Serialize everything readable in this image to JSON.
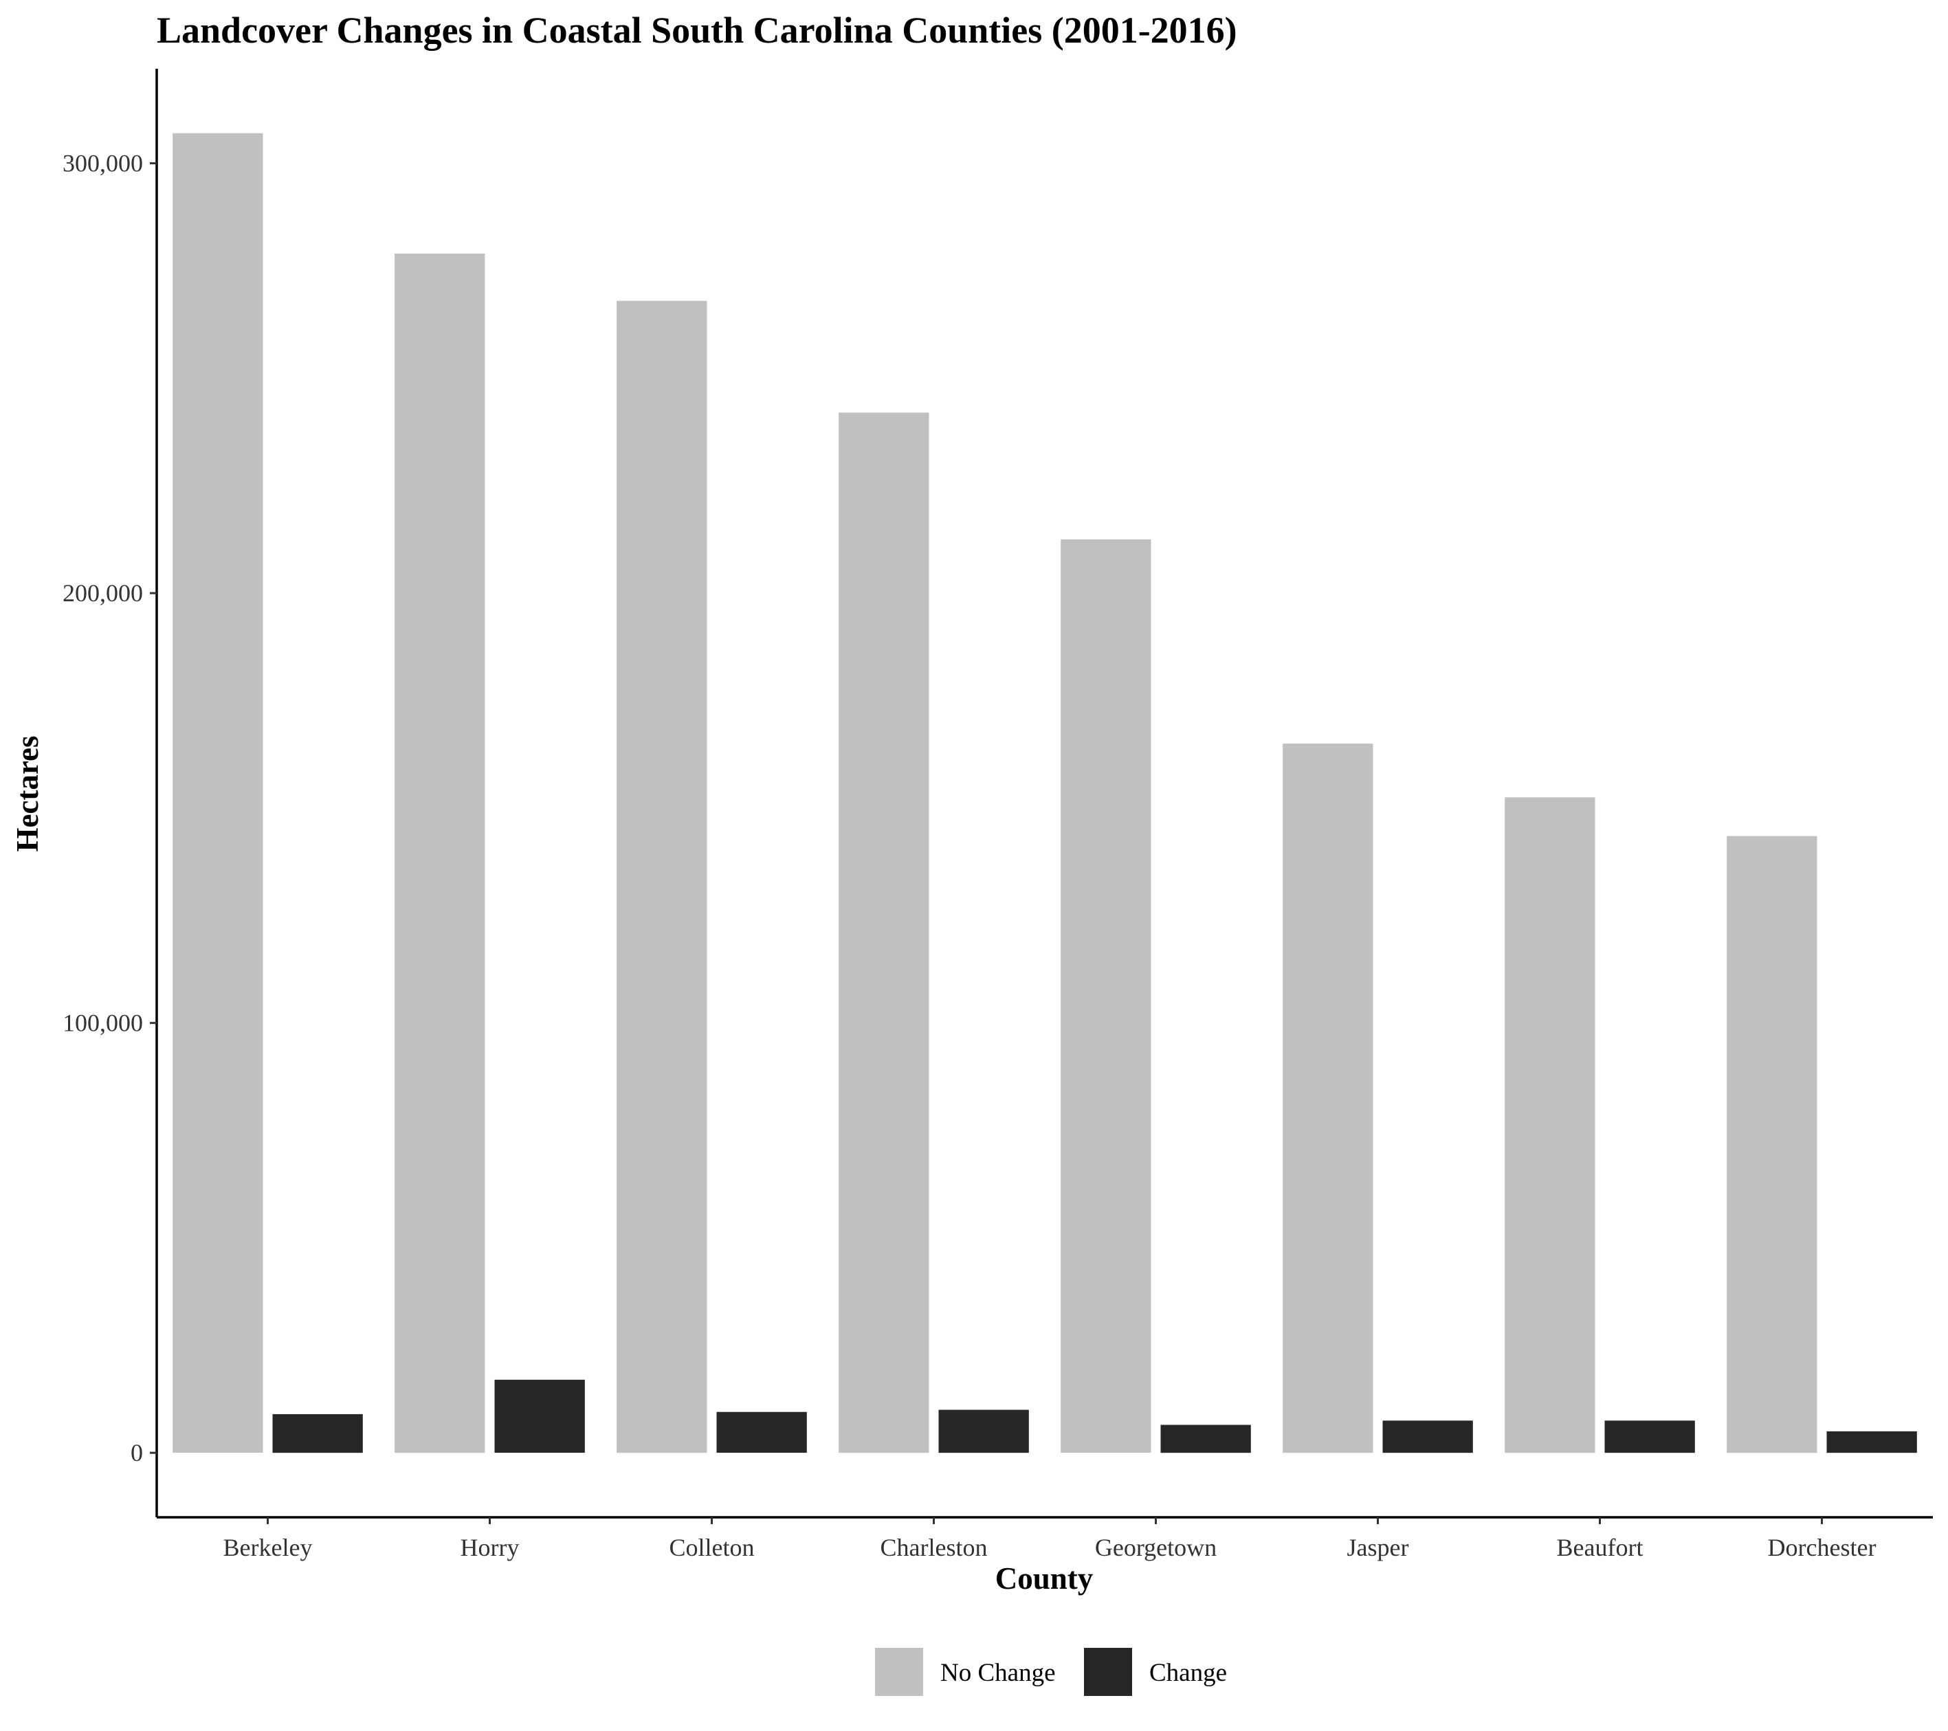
{
  "chart_data": {
    "type": "bar",
    "title": "Landcover Changes in Coastal South Carolina Counties (2001-2016)",
    "xlabel": "County",
    "ylabel": "Hectares",
    "categories": [
      "Berkeley",
      "Horry",
      "Colleton",
      "Charleston",
      "Georgetown",
      "Jasper",
      "Beaufort",
      "Dorchester"
    ],
    "series": [
      {
        "name": "No Change",
        "color": "#c0c0c0",
        "values": [
          307000,
          279000,
          268000,
          242000,
          212500,
          165000,
          152500,
          143500
        ]
      },
      {
        "name": "Change",
        "color": "#262626",
        "values": [
          9000,
          17000,
          9500,
          10000,
          6500,
          7500,
          7500,
          5000
        ]
      }
    ],
    "ylim": [
      -15000,
      322000
    ],
    "yticks": [
      0,
      100000,
      200000,
      300000
    ],
    "ytick_labels": [
      "0",
      "100,000",
      "200,000",
      "300,000"
    ],
    "grid": false,
    "legend_position": "bottom"
  }
}
